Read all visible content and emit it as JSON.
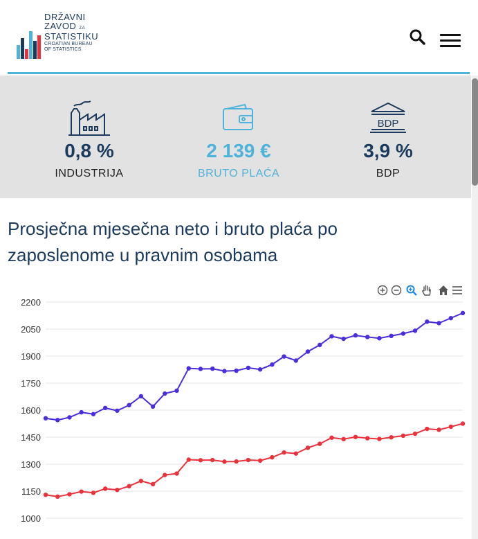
{
  "logo": {
    "line1": "DRŽAVNI",
    "line2": "ZAVOD",
    "line3": "STATISTIKU",
    "line_za": "ZA",
    "sub1": "CROATIAN BUREAU",
    "sub2": "OF STATISTICS"
  },
  "icons": {
    "search": "search-icon",
    "menu": "hamburger-menu-icon"
  },
  "stats": [
    {
      "value": "0,8 %",
      "label": "INDUSTRIJA",
      "icon": "factory-icon"
    },
    {
      "value": "2 139 €",
      "label": "BRUTO PLAĆA",
      "icon": "wallet-icon"
    },
    {
      "value": "3,9 %",
      "label": "BDP",
      "icon": "bank-building-icon",
      "icon_text": "BDP"
    }
  ],
  "colors": {
    "brand": "#1b3a5c",
    "accent": "#4fb3d9",
    "series_gross": "#4b2ddb",
    "series_net": "#e8323c"
  },
  "main": {
    "title": "Prosječna mjesečna neto i bruto plaća po zaposlenome u pravnim osobama"
  },
  "chart_toolbar": [
    "zoom-in-icon",
    "zoom-out-icon",
    "selection-zoom-icon",
    "pan-hand-icon",
    "reset-home-icon",
    "chart-menu-icon"
  ],
  "chart_data": {
    "type": "line",
    "title": "",
    "xlabel": "",
    "ylabel": "",
    "ylim": [
      1000,
      2200
    ],
    "yticks": [
      2200,
      2050,
      1900,
      1750,
      1600,
      1450,
      1300,
      1150,
      1000
    ],
    "grid": true,
    "series": [
      {
        "values": [
          1555,
          1545,
          1560,
          1588,
          1578,
          1612,
          1597,
          1628,
          1677,
          1620,
          1692,
          1708,
          1832,
          1829,
          1830,
          1817,
          1819,
          1835,
          1826,
          1853,
          1898,
          1875,
          1925,
          1962,
          2010,
          1996,
          2015,
          2006,
          1999,
          2012,
          2025,
          2041,
          2091,
          2083,
          2111,
          2139
        ]
      },
      {
        "values": [
          1130,
          1120,
          1133,
          1148,
          1141,
          1164,
          1157,
          1178,
          1207,
          1189,
          1240,
          1248,
          1325,
          1322,
          1323,
          1314,
          1315,
          1323,
          1320,
          1338,
          1365,
          1359,
          1391,
          1413,
          1447,
          1439,
          1451,
          1444,
          1440,
          1449,
          1458,
          1469,
          1496,
          1491,
          1508,
          1525
        ]
      }
    ]
  }
}
